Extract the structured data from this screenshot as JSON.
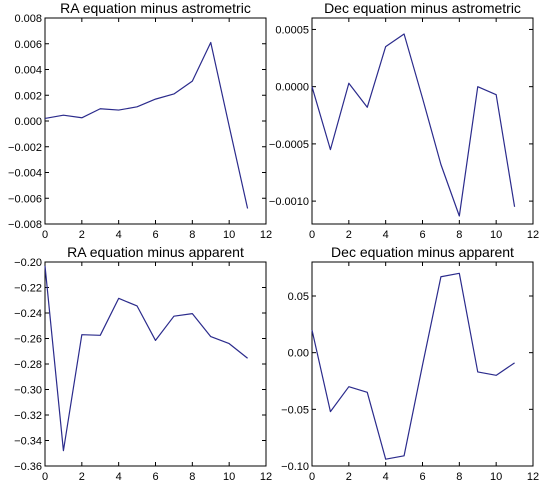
{
  "colors": {
    "line": "#2b2b8c",
    "background": "#ffffff",
    "axes": "#000000"
  },
  "chart_data": [
    {
      "type": "line",
      "title": "RA equation minus astrometric",
      "xlim": [
        0,
        12
      ],
      "ylim": [
        -0.008,
        0.008
      ],
      "xticks": [
        "0",
        "2",
        "4",
        "6",
        "8",
        "10",
        "12"
      ],
      "yticks": [
        "−0.008",
        "−0.006",
        "−0.004",
        "−0.002",
        "0.000",
        "0.002",
        "0.004",
        "0.006",
        "0.008"
      ],
      "xtick_values": [
        0,
        2,
        4,
        6,
        8,
        10,
        12
      ],
      "ytick_values": [
        -0.008,
        -0.006,
        -0.004,
        -0.002,
        0,
        0.002,
        0.004,
        0.006,
        0.008
      ],
      "x": [
        0,
        1,
        2,
        3,
        4,
        5,
        6,
        7,
        8,
        9,
        10,
        11
      ],
      "y": [
        0.0002,
        0.00045,
        0.00025,
        0.00095,
        0.00085,
        0.0011,
        0.0017,
        0.0021,
        0.0031,
        0.0061,
        -0.0004,
        -0.0068
      ]
    },
    {
      "type": "line",
      "title": "Dec equation minus astrometric",
      "xlim": [
        0,
        12
      ],
      "ylim": [
        -0.0012,
        0.0006
      ],
      "xticks": [
        "0",
        "2",
        "4",
        "6",
        "8",
        "10",
        "12"
      ],
      "yticks": [
        "−0.0010",
        "−0.0005",
        "0.0000",
        "0.0005"
      ],
      "xtick_values": [
        0,
        2,
        4,
        6,
        8,
        10,
        12
      ],
      "ytick_values": [
        -0.001,
        -0.0005,
        0,
        0.0005
      ],
      "x": [
        0,
        1,
        2,
        3,
        4,
        5,
        6,
        7,
        8,
        9,
        10,
        11
      ],
      "y": [
        0.0,
        -0.00055,
        3e-05,
        -0.00018,
        0.00035,
        0.00046,
        -0.0001,
        -0.00068,
        -0.00113,
        0.0,
        -7e-05,
        -0.00105
      ]
    },
    {
      "type": "line",
      "title": "RA equation minus apparent",
      "xlim": [
        0,
        12
      ],
      "ylim": [
        -0.36,
        -0.2
      ],
      "xticks": [
        "0",
        "2",
        "4",
        "6",
        "8",
        "10",
        "12"
      ],
      "yticks": [
        "−0.36",
        "−0.34",
        "−0.32",
        "−0.30",
        "−0.28",
        "−0.26",
        "−0.24",
        "−0.22",
        "−0.20"
      ],
      "xtick_values": [
        0,
        2,
        4,
        6,
        8,
        10,
        12
      ],
      "ytick_values": [
        -0.36,
        -0.34,
        -0.32,
        -0.3,
        -0.28,
        -0.26,
        -0.24,
        -0.22,
        -0.2
      ],
      "x": [
        0,
        1,
        2,
        3,
        4,
        5,
        6,
        7,
        8,
        9,
        10,
        11
      ],
      "y": [
        -0.203,
        -0.348,
        -0.257,
        -0.2575,
        -0.2285,
        -0.2345,
        -0.2615,
        -0.2425,
        -0.2405,
        -0.2585,
        -0.264,
        -0.2755
      ]
    },
    {
      "type": "line",
      "title": "Dec equation minus apparent",
      "xlim": [
        0,
        12
      ],
      "ylim": [
        -0.1,
        0.08
      ],
      "xticks": [
        "0",
        "2",
        "4",
        "6",
        "8",
        "10",
        "12"
      ],
      "yticks": [
        "−0.10",
        "−0.05",
        "0.00",
        "0.05"
      ],
      "xtick_values": [
        0,
        2,
        4,
        6,
        8,
        10,
        12
      ],
      "ytick_values": [
        -0.1,
        -0.05,
        0,
        0.05
      ],
      "x": [
        0,
        1,
        2,
        3,
        4,
        5,
        6,
        7,
        8,
        9,
        10,
        11
      ],
      "y": [
        0.02,
        -0.052,
        -0.03,
        -0.035,
        -0.094,
        -0.091,
        -0.011,
        0.067,
        0.07,
        -0.017,
        -0.02,
        -0.009
      ]
    }
  ]
}
